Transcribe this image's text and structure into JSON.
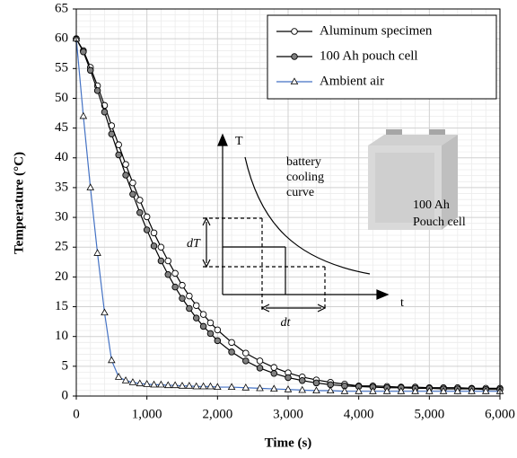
{
  "chart_data": {
    "type": "line",
    "x_label": "Time (s)",
    "y_label": "Temperature (°C)",
    "x": [
      0,
      100,
      200,
      300,
      400,
      500,
      600,
      700,
      800,
      900,
      1000,
      1100,
      1200,
      1300,
      1400,
      1500,
      1600,
      1700,
      1800,
      1900,
      2000,
      2200,
      2400,
      2600,
      2800,
      3000,
      3200,
      3400,
      3600,
      3800,
      4000,
      4200,
      4400,
      4600,
      4800,
      5000,
      5200,
      5400,
      5600,
      5800,
      6000
    ],
    "series": [
      {
        "name": "Aluminum specimen",
        "color": "#000000",
        "marker": "circle",
        "marker_fill": "#ffffff",
        "values": [
          60,
          58.0,
          55.2,
          52.1,
          48.8,
          45.4,
          42.2,
          38.9,
          35.8,
          32.9,
          30.1,
          27.4,
          25.0,
          22.7,
          20.6,
          18.6,
          16.8,
          15.2,
          13.7,
          12.3,
          11.1,
          9.0,
          7.2,
          5.9,
          4.8,
          3.9,
          3.2,
          2.7,
          2.3,
          2.0,
          1.7,
          1.7,
          1.6,
          1.5,
          1.5,
          1.4,
          1.4,
          1.4,
          1.3,
          1.3,
          1.3
        ]
      },
      {
        "name": "100 Ah pouch cell",
        "color": "#000000",
        "marker": "circle",
        "marker_fill": "#808080",
        "values": [
          60,
          57.8,
          54.7,
          51.3,
          47.7,
          44.0,
          40.5,
          37.1,
          33.9,
          30.8,
          27.9,
          25.2,
          22.7,
          20.4,
          18.3,
          16.4,
          14.7,
          13.1,
          11.7,
          10.5,
          9.3,
          7.4,
          5.9,
          4.7,
          3.8,
          3.1,
          2.6,
          2.2,
          1.9,
          1.7,
          1.6,
          1.5,
          1.4,
          1.4,
          1.3,
          1.3,
          1.2,
          1.2,
          1.2,
          1.1,
          1.1
        ]
      },
      {
        "name": "Ambient air",
        "color": "#4472c4",
        "marker": "triangle",
        "marker_fill": "#ffffff",
        "values": [
          60,
          47,
          35,
          24,
          14,
          6,
          3.2,
          2.6,
          2.3,
          2.1,
          2.0,
          1.9,
          1.9,
          1.8,
          1.8,
          1.7,
          1.7,
          1.6,
          1.6,
          1.6,
          1.5,
          1.5,
          1.4,
          1.3,
          1.2,
          1.1,
          1.0,
          0.9,
          0.9,
          0.8,
          0.8,
          0.8,
          0.8,
          0.8,
          0.8,
          0.8,
          0.8,
          0.8,
          0.8,
          0.8,
          0.8
        ]
      }
    ],
    "xlim": [
      0,
      6000
    ],
    "ylim": [
      0,
      65
    ],
    "xticks": [
      0,
      {
        "value": 1000,
        "label": "1,000"
      },
      {
        "value": 2000,
        "label": "2,000"
      },
      {
        "value": 3000,
        "label": "3,000"
      },
      {
        "value": 4000,
        "label": "4,000"
      },
      {
        "value": 5000,
        "label": "5,000"
      },
      {
        "value": 6000,
        "label": "6,000"
      }
    ],
    "yticks": [
      0,
      5,
      10,
      15,
      20,
      25,
      30,
      35,
      40,
      45,
      50,
      55,
      60,
      65
    ],
    "grid": true,
    "minor_grid": true,
    "legend": "top-right",
    "annotations": [
      "T",
      "t",
      "battery",
      "cooling",
      "curve",
      "dT",
      "dt",
      "100 Ah",
      "Pouch cell"
    ]
  }
}
